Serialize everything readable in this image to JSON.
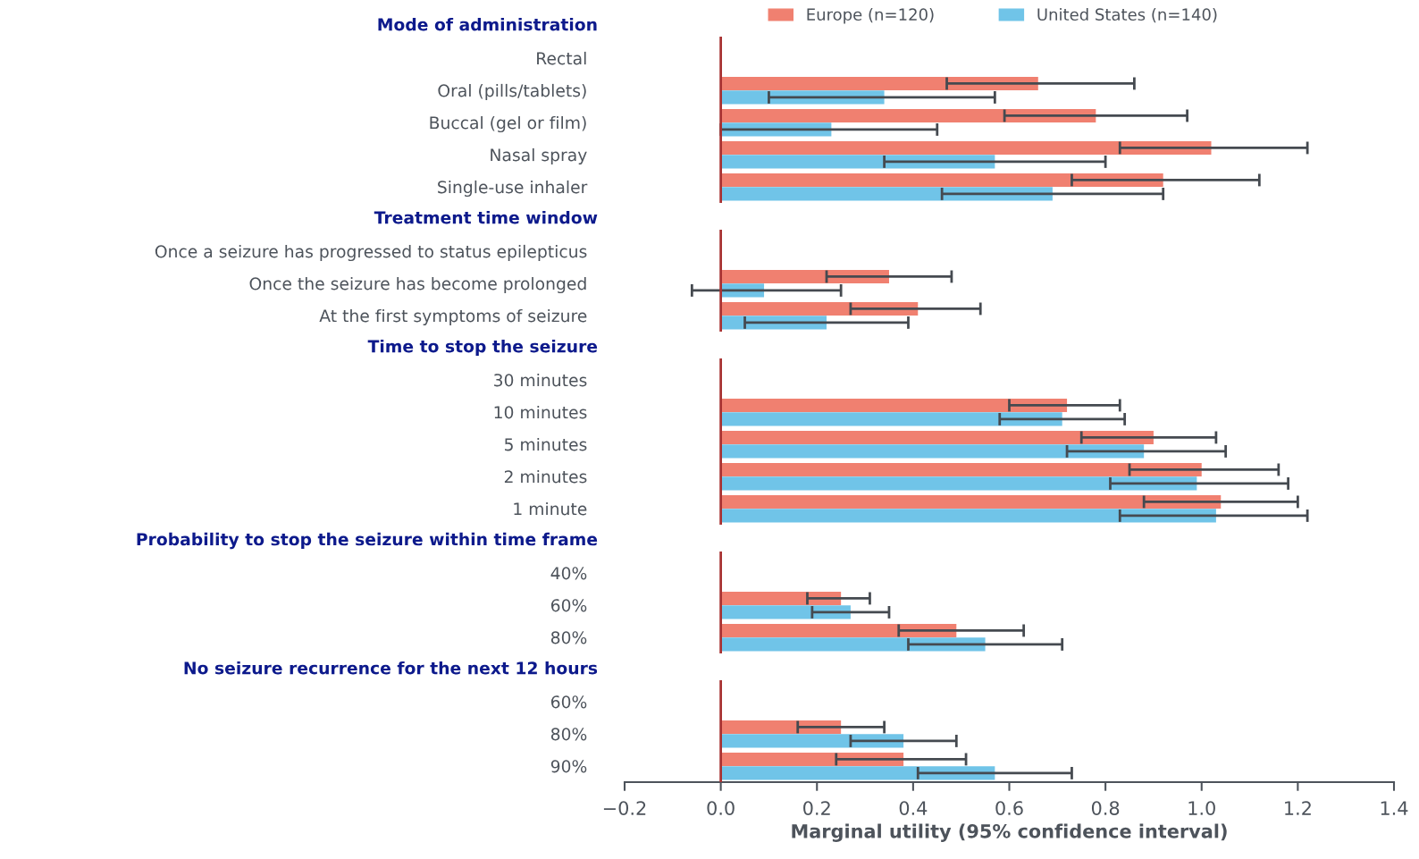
{
  "chart_data": [
    {
      "type": "bar",
      "orientation": "horizontal",
      "title": "Mode of administration",
      "categories": [
        "Rectal",
        "Oral (pills/tablets)",
        "Buccal (gel or film)",
        "Nasal spray",
        "Single-use inhaler"
      ],
      "xlim": [
        -0.2,
        1.4
      ],
      "tick_labels": "y",
      "legend": "top",
      "ref_lines": [
        {
          "axis": "x",
          "value": 0,
          "color": "#a83232"
        }
      ],
      "series": [
        {
          "name": "Europe (n=120)",
          "color": "#f08070",
          "values": [
            null,
            0.66,
            0.78,
            1.02,
            0.92
          ],
          "errors": [
            null,
            [
              0.47,
              0.86
            ],
            [
              0.59,
              0.97
            ],
            [
              0.83,
              1.22
            ],
            [
              0.73,
              1.12
            ]
          ]
        },
        {
          "name": "United States (n=140)",
          "color": "#70c4e8",
          "values": [
            null,
            0.34,
            0.23,
            0.57,
            0.69
          ],
          "errors": [
            null,
            [
              0.1,
              0.57
            ],
            [
              0.0,
              0.45
            ],
            [
              0.34,
              0.8
            ],
            [
              0.46,
              0.92
            ]
          ]
        }
      ]
    },
    {
      "type": "bar",
      "orientation": "horizontal",
      "title": "Treatment time window",
      "categories": [
        "Once a seizure has progressed to status epilepticus",
        "Once the seizure has become prolonged",
        "At the first symptoms of seizure"
      ],
      "xlim": [
        -0.2,
        1.4
      ],
      "tick_labels": "y",
      "ref_lines": [
        {
          "axis": "x",
          "value": 0,
          "color": "#a83232"
        }
      ],
      "series": [
        {
          "color": "#f08070",
          "values": [
            null,
            0.35,
            0.41
          ],
          "errors": [
            null,
            [
              0.22,
              0.48
            ],
            [
              0.27,
              0.54
            ]
          ]
        },
        {
          "color": "#70c4e8",
          "values": [
            null,
            0.09,
            0.22
          ],
          "errors": [
            null,
            [
              -0.06,
              0.25
            ],
            [
              0.05,
              0.39
            ]
          ]
        }
      ]
    },
    {
      "type": "bar",
      "orientation": "horizontal",
      "title": "Time to stop the seizure",
      "categories": [
        "30 minutes",
        "10 minutes",
        "5 minutes",
        "2 minutes",
        "1 minute"
      ],
      "xlim": [
        -0.2,
        1.4
      ],
      "tick_labels": "y",
      "ref_lines": [
        {
          "axis": "x",
          "value": 0,
          "color": "#a83232"
        }
      ],
      "series": [
        {
          "color": "#f08070",
          "values": [
            null,
            0.72,
            0.9,
            1.0,
            1.04
          ],
          "errors": [
            null,
            [
              0.6,
              0.83
            ],
            [
              0.75,
              1.03
            ],
            [
              0.85,
              1.16
            ],
            [
              0.88,
              1.2
            ]
          ]
        },
        {
          "color": "#70c4e8",
          "values": [
            null,
            0.71,
            0.88,
            0.99,
            1.03
          ],
          "errors": [
            null,
            [
              0.58,
              0.84
            ],
            [
              0.72,
              1.05
            ],
            [
              0.81,
              1.18
            ],
            [
              0.83,
              1.22
            ]
          ]
        }
      ]
    },
    {
      "type": "bar",
      "orientation": "horizontal",
      "title": "Probability to stop the seizure within time frame",
      "categories": [
        "40%",
        "60%",
        "80%"
      ],
      "xlim": [
        -0.2,
        1.4
      ],
      "tick_labels": "y",
      "ref_lines": [
        {
          "axis": "x",
          "value": 0,
          "color": "#a83232"
        }
      ],
      "series": [
        {
          "color": "#f08070",
          "values": [
            null,
            0.25,
            0.49
          ],
          "errors": [
            null,
            [
              0.18,
              0.31
            ],
            [
              0.37,
              0.63
            ]
          ]
        },
        {
          "color": "#70c4e8",
          "values": [
            null,
            0.27,
            0.55
          ],
          "errors": [
            null,
            [
              0.19,
              0.35
            ],
            [
              0.39,
              0.71
            ]
          ]
        }
      ]
    },
    {
      "type": "bar",
      "orientation": "horizontal",
      "title": "No seizure recurrence for the next 12 hours",
      "categories": [
        "60%",
        "80%",
        "90%"
      ],
      "xlim": [
        -0.2,
        1.4
      ],
      "xlabel": "Marginal utility (95% confidence interval)",
      "ref_lines": [
        {
          "axis": "x",
          "value": 0,
          "color": "#a83232"
        }
      ],
      "xticks": [
        {
          "value": -0.2,
          "label": "−0.2"
        },
        {
          "value": 0,
          "label": "0.0"
        },
        {
          "value": 0.2,
          "label": "0.2"
        },
        {
          "value": 0.4,
          "label": "0.4"
        },
        {
          "value": 0.6,
          "label": "0.6"
        },
        {
          "value": 0.8,
          "label": "0.8"
        },
        {
          "value": 1.0,
          "label": "1.0"
        },
        {
          "value": 1.2,
          "label": "1.2"
        },
        {
          "value": 1.4,
          "label": "1.4"
        }
      ],
      "series": [
        {
          "color": "#f08070",
          "values": [
            null,
            0.25,
            0.38
          ],
          "errors": [
            null,
            [
              0.16,
              0.34
            ],
            [
              0.24,
              0.51
            ]
          ]
        },
        {
          "color": "#70c4e8",
          "values": [
            null,
            0.38,
            0.57
          ],
          "errors": [
            null,
            [
              0.27,
              0.49
            ],
            [
              0.41,
              0.73
            ]
          ]
        }
      ]
    }
  ]
}
